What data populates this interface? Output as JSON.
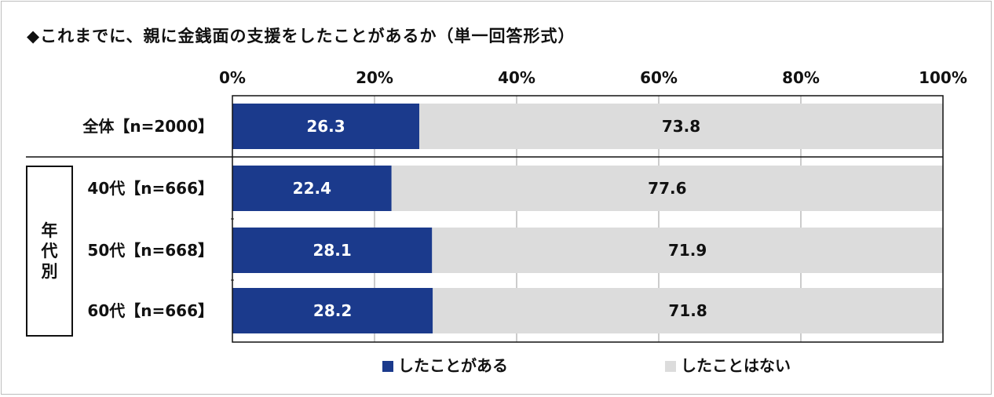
{
  "title": "◆これまでに、親に金銭面の支援をしたことがあるか（単一回答形式）",
  "group_label": [
    "年",
    "代",
    "別"
  ],
  "colors": {
    "has": "#1b3a8c",
    "not": "#dcdcdc"
  },
  "chart_data": {
    "type": "bar",
    "orientation": "horizontal",
    "stacked": true,
    "percent": true,
    "xlim": [
      0,
      100
    ],
    "ticks": [
      "0%",
      "20%",
      "40%",
      "60%",
      "80%",
      "100%"
    ],
    "categories": [
      "全体【n=2000】",
      "40代【n=666】",
      "50代【n=668】",
      "60代【n=666】"
    ],
    "series": [
      {
        "name": "したことがある",
        "values": [
          26.3,
          22.4,
          28.1,
          28.2
        ]
      },
      {
        "name": "したことはない",
        "values": [
          73.8,
          77.6,
          71.9,
          71.8
        ]
      }
    ],
    "legend": "bottom",
    "grid": true
  }
}
